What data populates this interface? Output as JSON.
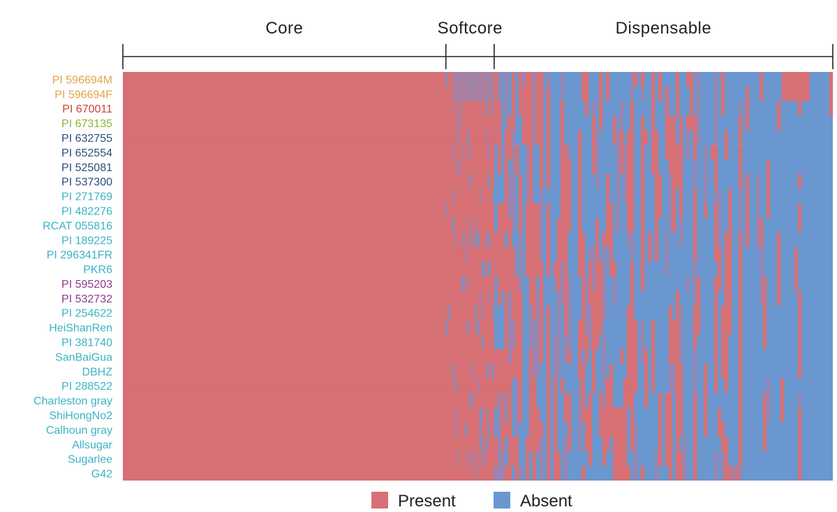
{
  "chart_data": {
    "type": "heatmap",
    "title": "",
    "sections": [
      {
        "name": "Core",
        "start": 0.0,
        "end": 0.455
      },
      {
        "name": "Softcore",
        "start": 0.455,
        "end": 0.523
      },
      {
        "name": "Dispensable",
        "start": 0.523,
        "end": 1.0
      }
    ],
    "rows": [
      {
        "label": "PI 596694M",
        "color": "#E5A24A"
      },
      {
        "label": "PI 596694F",
        "color": "#E5A24A"
      },
      {
        "label": "PI 670011",
        "color": "#D0413B"
      },
      {
        "label": "PI 673135",
        "color": "#8BB63A"
      },
      {
        "label": "PI 632755",
        "color": "#2B4E7E"
      },
      {
        "label": "PI 652554",
        "color": "#2B4E7E"
      },
      {
        "label": "PI 525081",
        "color": "#2B4E7E"
      },
      {
        "label": "PI 537300",
        "color": "#2B4E7E"
      },
      {
        "label": "PI 271769",
        "color": "#3BB3C3"
      },
      {
        "label": "PI 482276",
        "color": "#3BB3C3"
      },
      {
        "label": "RCAT 055816",
        "color": "#3BB3C3"
      },
      {
        "label": "PI 189225",
        "color": "#3BB3C3"
      },
      {
        "label": "PI 296341FR",
        "color": "#3BB3C3"
      },
      {
        "label": "PKR6",
        "color": "#3BB3C3"
      },
      {
        "label": "PI 595203",
        "color": "#8E3A8C"
      },
      {
        "label": "PI 532732",
        "color": "#8E3A8C"
      },
      {
        "label": "PI 254622",
        "color": "#3BB3C3"
      },
      {
        "label": "HeiShanRen",
        "color": "#3BB3C3"
      },
      {
        "label": "PI 381740",
        "color": "#3BB3C3"
      },
      {
        "label": "SanBaiGua",
        "color": "#3BB3C3"
      },
      {
        "label": "DBHZ",
        "color": "#3BB3C3"
      },
      {
        "label": "PI 288522",
        "color": "#3BB3C3"
      },
      {
        "label": "Charleston gray",
        "color": "#3BB3C3"
      },
      {
        "label": "ShiHongNo2",
        "color": "#3BB3C3"
      },
      {
        "label": "Calhoun gray",
        "color": "#3BB3C3"
      },
      {
        "label": "Allsugar",
        "color": "#3BB3C3"
      },
      {
        "label": "Sugarlee",
        "color": "#3BB3C3"
      },
      {
        "label": "G42",
        "color": "#3BB3C3"
      }
    ],
    "legend": [
      {
        "name": "Present",
        "color": "#D67075"
      },
      {
        "name": "Absent",
        "color": "#6A97CF"
      }
    ],
    "legend_position": "bottom",
    "colors": {
      "present": "#D67075",
      "absent": "#6A97CF",
      "mix": "#9A85B0"
    }
  }
}
